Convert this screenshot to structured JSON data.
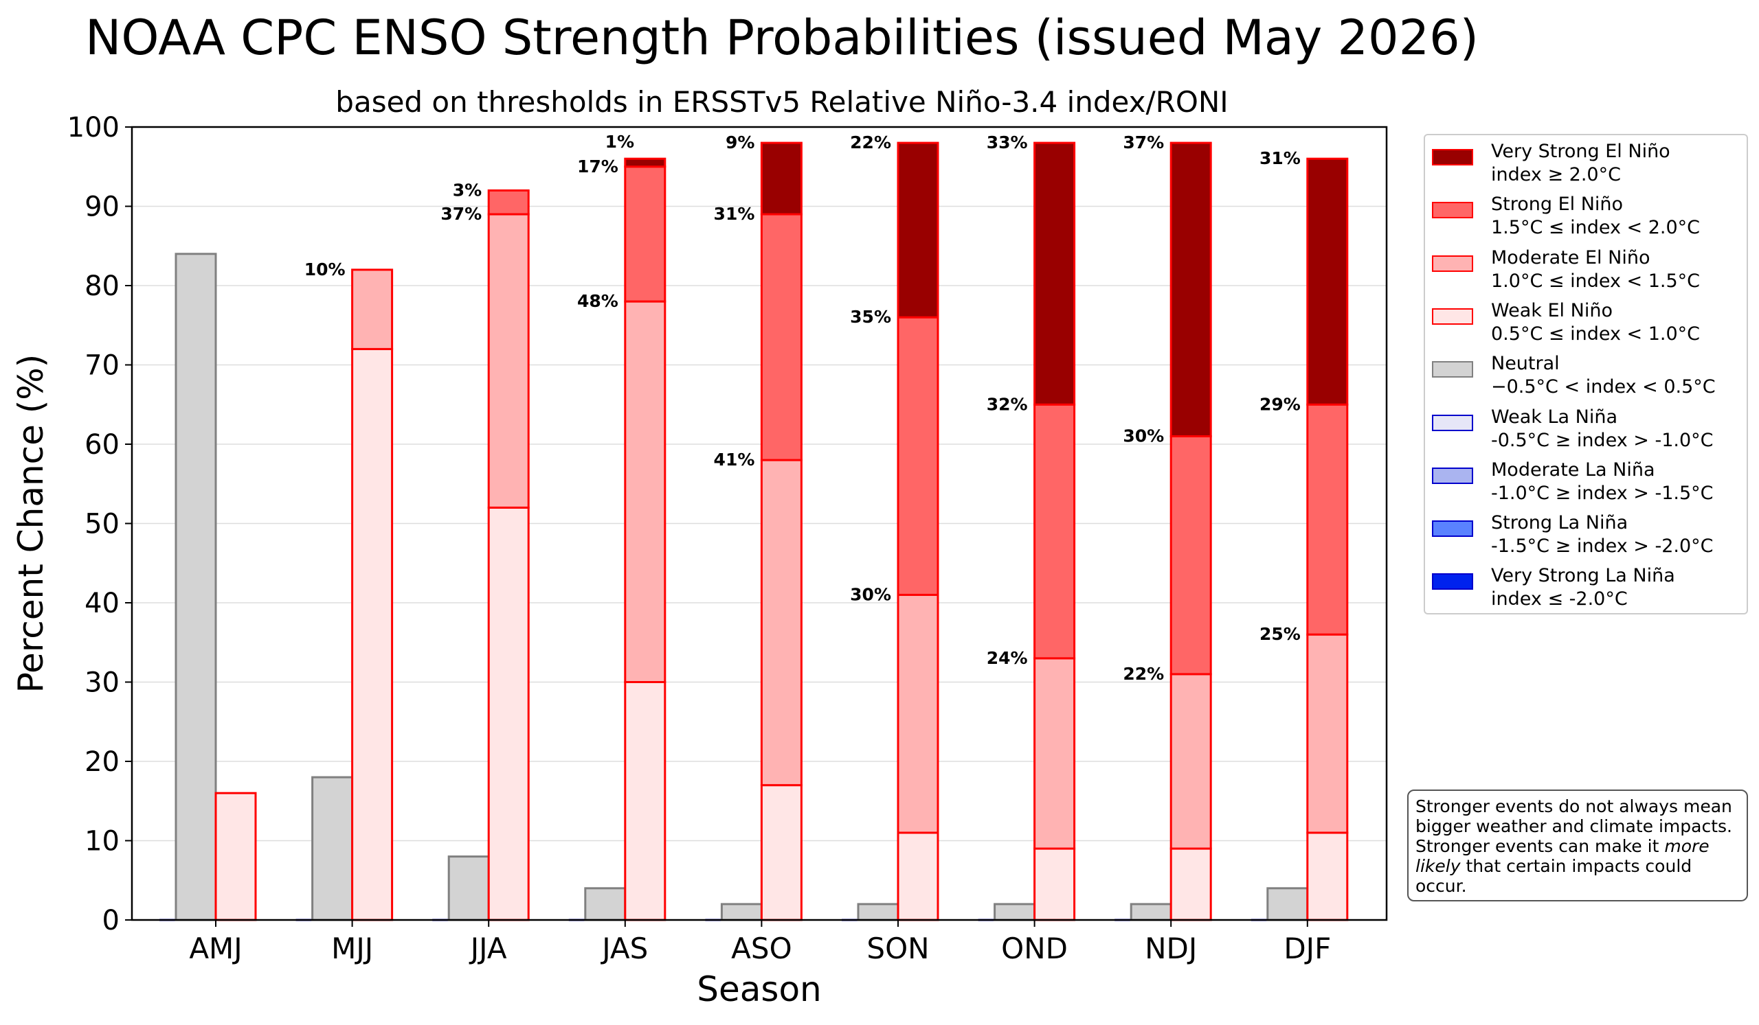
{
  "chart_data": {
    "type": "bar",
    "title": "NOAA CPC ENSO Strength Probabilities (issued May 2026)",
    "subtitle": "based on thresholds in ERSSTv5 Relative Niño-3.4 index/RONI",
    "xlabel": "Season",
    "ylabel": "Percent Chance (%)",
    "ylim": [
      0,
      100
    ],
    "yticks": [
      "0",
      "10",
      "20",
      "30",
      "40",
      "50",
      "60",
      "70",
      "80",
      "90",
      "100"
    ],
    "grid": "horizontal",
    "legend_position": "right",
    "categories": [
      "AMJ",
      "MJJ",
      "JJA",
      "JAS",
      "ASO",
      "SON",
      "OND",
      "NDJ",
      "DJF"
    ],
    "neutral": {
      "name": "Neutral",
      "values": [
        84,
        18,
        8,
        4,
        2,
        2,
        2,
        2,
        4
      ]
    },
    "la_nina": {
      "values": [
        0,
        0,
        0,
        0,
        0,
        0,
        0,
        0,
        0
      ]
    },
    "el_nino_series": [
      {
        "name": "Weak El Niño",
        "values": [
          16,
          72,
          52,
          30,
          17,
          11,
          9,
          9,
          11
        ]
      },
      {
        "name": "Moderate El Niño",
        "values": [
          0,
          10,
          37,
          48,
          41,
          30,
          24,
          22,
          25
        ]
      },
      {
        "name": "Strong El Niño",
        "values": [
          0,
          0,
          3,
          17,
          31,
          35,
          32,
          30,
          29
        ]
      },
      {
        "name": "Very Strong El Niño",
        "values": [
          0,
          0,
          0,
          1,
          9,
          22,
          33,
          37,
          31
        ]
      }
    ],
    "data_labels": [
      {
        "season": "MJJ",
        "series": "Moderate El Niño",
        "text": "10%"
      },
      {
        "season": "JJA",
        "series": "Moderate El Niño",
        "text": "37%"
      },
      {
        "season": "JJA",
        "series": "Strong El Niño",
        "text": "3%"
      },
      {
        "season": "JAS",
        "series": "Moderate El Niño",
        "text": "48%"
      },
      {
        "season": "JAS",
        "series": "Strong El Niño",
        "text": "17%"
      },
      {
        "season": "JAS",
        "series": "Very Strong El Niño",
        "text": "1%"
      },
      {
        "season": "ASO",
        "series": "Moderate El Niño",
        "text": "41%"
      },
      {
        "season": "ASO",
        "series": "Strong El Niño",
        "text": "31%"
      },
      {
        "season": "ASO",
        "series": "Very Strong El Niño",
        "text": "9%"
      },
      {
        "season": "SON",
        "series": "Moderate El Niño",
        "text": "30%"
      },
      {
        "season": "SON",
        "series": "Strong El Niño",
        "text": "35%"
      },
      {
        "season": "SON",
        "series": "Very Strong El Niño",
        "text": "22%"
      },
      {
        "season": "OND",
        "series": "Moderate El Niño",
        "text": "24%"
      },
      {
        "season": "OND",
        "series": "Strong El Niño",
        "text": "32%"
      },
      {
        "season": "OND",
        "series": "Very Strong El Niño",
        "text": "33%"
      },
      {
        "season": "NDJ",
        "series": "Moderate El Niño",
        "text": "22%"
      },
      {
        "season": "NDJ",
        "series": "Strong El Niño",
        "text": "30%"
      },
      {
        "season": "NDJ",
        "series": "Very Strong El Niño",
        "text": "37%"
      },
      {
        "season": "DJF",
        "series": "Moderate El Niño",
        "text": "25%"
      },
      {
        "season": "DJF",
        "series": "Strong El Niño",
        "text": "29%"
      },
      {
        "season": "DJF",
        "series": "Very Strong El Niño",
        "text": "31%"
      }
    ]
  },
  "legend": [
    {
      "name": "Very Strong El Niño",
      "range": "index ≥ 2.0°C",
      "fill": "#990000",
      "edge": "#ff0000"
    },
    {
      "name": "Strong El Niño",
      "range": "1.5°C ≤ index < 2.0°C",
      "fill": "#ff6666",
      "edge": "#ff0000"
    },
    {
      "name": "Moderate El Niño",
      "range": "1.0°C ≤ index < 1.5°C",
      "fill": "#ffb3b3",
      "edge": "#ff0000"
    },
    {
      "name": "Weak El Niño",
      "range": "0.5°C ≤ index < 1.0°C",
      "fill": "#ffe6e6",
      "edge": "#ff0000"
    },
    {
      "name": "Neutral",
      "range": "−0.5°C < index < 0.5°C",
      "fill": "#d3d3d3",
      "edge": "#808080"
    },
    {
      "name": "Weak La Niña",
      "range": "-0.5°C ≥ index > -1.0°C",
      "fill": "#e6e6f7",
      "edge": "#0000cc"
    },
    {
      "name": "Moderate La Niña",
      "range": "-1.0°C ≥ index > -1.5°C",
      "fill": "#aab4f0",
      "edge": "#0000cc"
    },
    {
      "name": "Strong La Niña",
      "range": "-1.5°C ≥ index > -2.0°C",
      "fill": "#5a82ff",
      "edge": "#0000cc"
    },
    {
      "name": "Very Strong La Niña",
      "range": "index ≤ -2.0°C",
      "fill": "#0022ee",
      "edge": "#0000cc"
    }
  ],
  "note": {
    "part1": "Stronger events do not always mean bigger weather and climate impacts. Stronger events can make it ",
    "emphasis": "more likely",
    "part2": " that certain impacts could occur."
  }
}
